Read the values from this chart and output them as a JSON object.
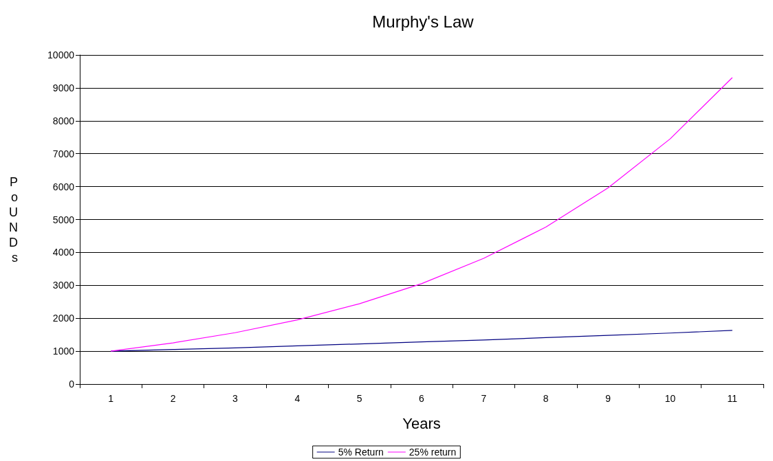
{
  "chart_data": {
    "type": "line",
    "title": "Murphy's Law",
    "xlabel": "Years",
    "ylabel": "PoUNDs",
    "categories": [
      "1",
      "2",
      "3",
      "4",
      "5",
      "6",
      "7",
      "8",
      "9",
      "10",
      "11"
    ],
    "series": [
      {
        "name": "5% Return",
        "color": "#000080",
        "values": [
          1000,
          1050,
          1100,
          1160,
          1220,
          1280,
          1340,
          1410,
          1480,
          1550,
          1630
        ]
      },
      {
        "name": "25% return",
        "color": "#ff00ff",
        "values": [
          1000,
          1250,
          1560,
          1950,
          2440,
          3050,
          3820,
          4770,
          5960,
          7450,
          9310
        ]
      }
    ],
    "ylim": [
      0,
      10000
    ],
    "yticks": [
      0,
      1000,
      2000,
      3000,
      4000,
      5000,
      6000,
      7000,
      8000,
      9000,
      10000
    ],
    "grid": "y",
    "legend": "bottom",
    "marker": "none",
    "line_style": "solid"
  }
}
